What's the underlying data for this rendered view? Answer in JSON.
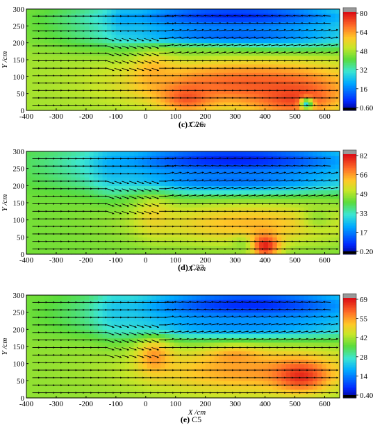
{
  "chart_data": [
    {
      "type": "heatmap",
      "caption_letter": "(c)",
      "caption_text": "C26",
      "xlabel": "X /cm",
      "ylabel": "Y /cm",
      "xlim": [
        -400,
        650
      ],
      "ylim": [
        0,
        300
      ],
      "x_ticks": [
        -400,
        -300,
        -200,
        -100,
        0,
        100,
        200,
        300,
        400,
        500,
        600
      ],
      "y_ticks": [
        0,
        50,
        100,
        150,
        200,
        250,
        300
      ],
      "colorbar_ticks": [
        "0.60",
        "16",
        "32",
        "48",
        "64",
        "80"
      ],
      "colorbar_range": [
        0.6,
        80
      ],
      "field": {
        "background_value": 48,
        "blobs": [
          {
            "x": -80,
            "y": 270,
            "value": 40,
            "sx": 30,
            "sy": 40
          },
          {
            "x": 300,
            "y": 280,
            "value": 8,
            "sx": 330,
            "sy": 30
          },
          {
            "x": 300,
            "y": 220,
            "value": 14,
            "sx": 320,
            "sy": 30
          },
          {
            "x": 150,
            "y": 175,
            "value": 42,
            "sx": 200,
            "sy": 16
          },
          {
            "x": 330,
            "y": 80,
            "value": 70,
            "sx": 260,
            "sy": 50
          },
          {
            "x": 30,
            "y": 110,
            "value": 62,
            "sx": 50,
            "sy": 40
          },
          {
            "x": 500,
            "y": 40,
            "value": 74,
            "sx": 100,
            "sy": 40
          },
          {
            "x": 140,
            "y": 40,
            "value": 72,
            "sx": 60,
            "sy": 30
          },
          {
            "x": 540,
            "y": 20,
            "value": 30,
            "sx": 15,
            "sy": 12
          }
        ]
      }
    },
    {
      "type": "heatmap",
      "caption_letter": "(d)",
      "caption_text": "C33",
      "xlabel": "X /cm",
      "ylabel": "Y /cm",
      "xlim": [
        -400,
        650
      ],
      "ylim": [
        0,
        300
      ],
      "x_ticks": [
        -400,
        -300,
        -200,
        -100,
        0,
        100,
        200,
        300,
        400,
        500,
        600
      ],
      "y_ticks": [
        0,
        50,
        100,
        150,
        200,
        250,
        300
      ],
      "colorbar_ticks": [
        "0.20",
        "17",
        "33",
        "49",
        "66",
        "82"
      ],
      "colorbar_range": [
        0.2,
        82
      ],
      "field": {
        "background_value": 45,
        "blobs": [
          {
            "x": -120,
            "y": 250,
            "value": 38,
            "sx": 40,
            "sy": 60
          },
          {
            "x": 300,
            "y": 275,
            "value": 6,
            "sx": 330,
            "sy": 35
          },
          {
            "x": 300,
            "y": 215,
            "value": 16,
            "sx": 300,
            "sy": 30
          },
          {
            "x": 350,
            "y": 90,
            "value": 62,
            "sx": 250,
            "sy": 45
          },
          {
            "x": 30,
            "y": 110,
            "value": 58,
            "sx": 45,
            "sy": 40
          },
          {
            "x": 400,
            "y": 25,
            "value": 80,
            "sx": 35,
            "sy": 25
          },
          {
            "x": 320,
            "y": 25,
            "value": 48,
            "sx": 25,
            "sy": 20
          },
          {
            "x": 580,
            "y": 110,
            "value": 48,
            "sx": 40,
            "sy": 30
          }
        ]
      }
    },
    {
      "type": "heatmap",
      "caption_letter": "(e)",
      "caption_text": "C5",
      "xlabel": "X /cm",
      "ylabel": "Y /cm",
      "xlim": [
        -400,
        650
      ],
      "ylim": [
        0,
        300
      ],
      "x_ticks": [
        -400,
        -300,
        -200,
        -100,
        0,
        100,
        200,
        300,
        400,
        500,
        600
      ],
      "y_ticks": [
        0,
        50,
        100,
        150,
        200,
        250,
        300
      ],
      "colorbar_ticks": [
        "0.40",
        "14",
        "28",
        "42",
        "55",
        "69"
      ],
      "colorbar_range": [
        0.4,
        69
      ],
      "field": {
        "background_value": 40,
        "blobs": [
          {
            "x": -110,
            "y": 250,
            "value": 34,
            "sx": 40,
            "sy": 60
          },
          {
            "x": 350,
            "y": 270,
            "value": 6,
            "sx": 320,
            "sy": 40
          },
          {
            "x": 330,
            "y": 210,
            "value": 16,
            "sx": 300,
            "sy": 30
          },
          {
            "x": 360,
            "y": 80,
            "value": 55,
            "sx": 260,
            "sy": 50
          },
          {
            "x": 30,
            "y": 120,
            "value": 56,
            "sx": 40,
            "sy": 35
          },
          {
            "x": 520,
            "y": 65,
            "value": 66,
            "sx": 60,
            "sy": 30
          },
          {
            "x": 300,
            "y": 120,
            "value": 55,
            "sx": 60,
            "sy": 20
          }
        ]
      }
    }
  ]
}
